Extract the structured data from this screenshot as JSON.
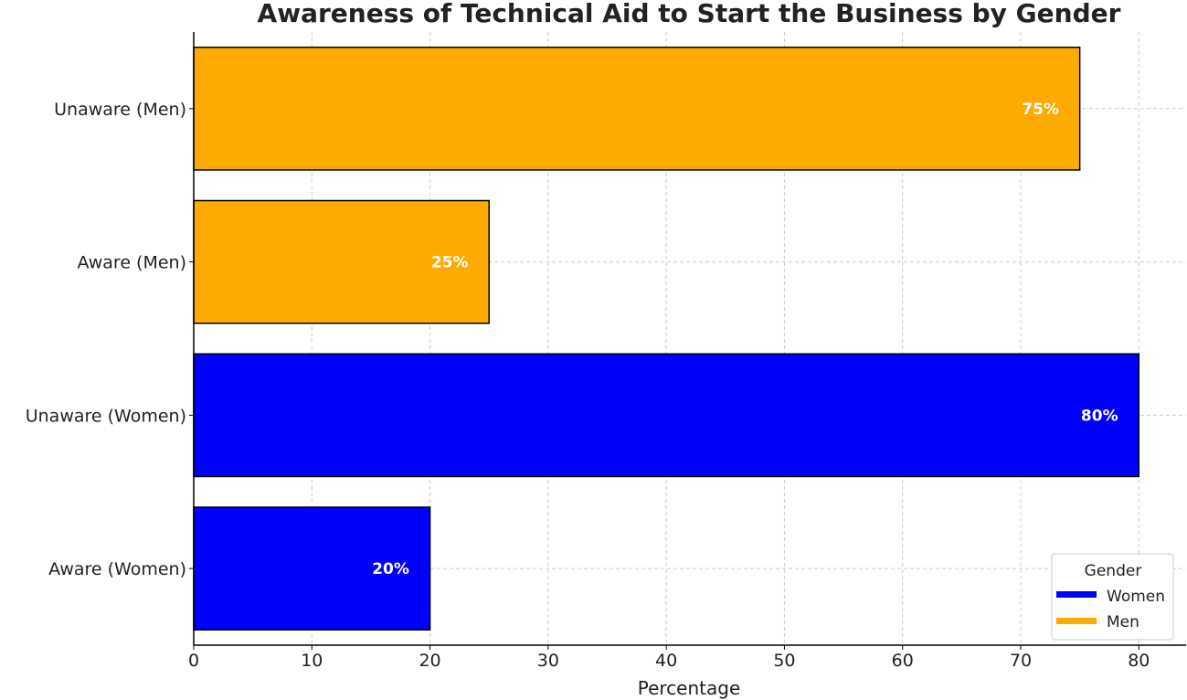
{
  "chart_data": {
    "type": "bar",
    "orientation": "horizontal",
    "title": "Awareness of Technical Aid to Start the Business by Gender",
    "xlabel": "Percentage",
    "ylabel": "",
    "xlim": [
      0,
      84
    ],
    "xticks": [
      0,
      10,
      20,
      30,
      40,
      50,
      60,
      70,
      80
    ],
    "grid": true,
    "categories": [
      "Aware (Women)",
      "Unaware (Women)",
      "Aware (Men)",
      "Unaware (Men)"
    ],
    "values": [
      20,
      80,
      25,
      75
    ],
    "data_labels": [
      "20%",
      "80%",
      "25%",
      "75%"
    ],
    "bar_series": [
      "Women",
      "Women",
      "Men",
      "Men"
    ],
    "legend": {
      "title": "Gender",
      "placement": "bottom-right",
      "entries": [
        {
          "name": "Women",
          "color": "#0000ff"
        },
        {
          "name": "Men",
          "color": "#ffaa00"
        }
      ]
    }
  }
}
